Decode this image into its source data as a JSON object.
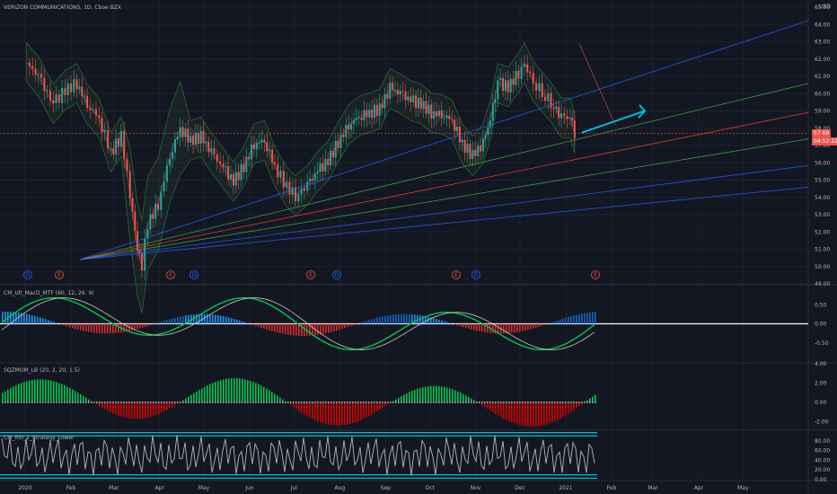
{
  "header": {
    "title": "VERIZON COMMUNICATIONS, 1D, Cboe BZX",
    "currency": "USD",
    "price_label": "57.69",
    "countdown_label": "04:52:22"
  },
  "panes": {
    "macd_label": "CM_Ult_MacD_MTF (60, 12, 26, 9)",
    "sqz_label": "SQZMOM_LB (20, 2, 20, 1.5)",
    "rsi_label": "CM_RSI_2_Strategy_Lower"
  },
  "colors": {
    "bg": "#131722",
    "up": "#26a69a",
    "down": "#ef5350",
    "grid": "#1e222d",
    "axis_text": "#b2b5be",
    "fib1": "#2962ff",
    "fib2": "#4caf50",
    "fib3": "#f44336",
    "macd_green": "#00c853",
    "macd_red": "#ff1744",
    "sqz_green": "#00c853",
    "sqz_red": "#d50000",
    "rsi_line": "#b2b5be",
    "rsi_band": "#00bcd4"
  },
  "chart_data": [
    {
      "type": "candlestick",
      "title": "VERIZON COMMUNICATIONS, 1D, Cboe BZX",
      "ylabel": "USD",
      "ylim": [
        49.0,
        65.0
      ],
      "y_ticks": [
        "65.00",
        "64.00",
        "63.00",
        "62.00",
        "61.00",
        "60.00",
        "59.00",
        "58.00",
        "57.00",
        "56.00",
        "55.00",
        "54.00",
        "53.00",
        "52.00",
        "51.00",
        "50.00",
        "49.00"
      ],
      "x_ticks": [
        "2020",
        "Feb",
        "Mar",
        "Apr",
        "May",
        "Jun",
        "Jul",
        "Aug",
        "Sep",
        "Oct",
        "Nov",
        "Dec",
        "2021",
        "Feb",
        "Mar",
        "Apr",
        "May"
      ],
      "last_price": 57.69,
      "close_path": [
        {
          "x": "2020-01-02",
          "y": 61.8
        },
        {
          "x": "2020-01-10",
          "y": 61.0
        },
        {
          "x": "2020-01-20",
          "y": 59.4
        },
        {
          "x": "2020-01-28",
          "y": 60.2
        },
        {
          "x": "2020-02-05",
          "y": 60.6
        },
        {
          "x": "2020-02-12",
          "y": 59.4
        },
        {
          "x": "2020-02-20",
          "y": 58.6
        },
        {
          "x": "2020-02-28",
          "y": 56.6
        },
        {
          "x": "2020-03-06",
          "y": 57.5
        },
        {
          "x": "2020-03-12",
          "y": 54.2
        },
        {
          "x": "2020-03-17",
          "y": 51.0
        },
        {
          "x": "2020-03-20",
          "y": 50.0
        },
        {
          "x": "2020-03-24",
          "y": 52.5
        },
        {
          "x": "2020-03-31",
          "y": 53.6
        },
        {
          "x": "2020-04-08",
          "y": 56.4
        },
        {
          "x": "2020-04-15",
          "y": 58.0
        },
        {
          "x": "2020-04-22",
          "y": 57.3
        },
        {
          "x": "2020-04-29",
          "y": 57.5
        },
        {
          "x": "2020-05-06",
          "y": 56.6
        },
        {
          "x": "2020-05-14",
          "y": 55.7
        },
        {
          "x": "2020-05-21",
          "y": 54.9
        },
        {
          "x": "2020-05-28",
          "y": 55.8
        },
        {
          "x": "2020-06-04",
          "y": 57.1
        },
        {
          "x": "2020-06-11",
          "y": 57.3
        },
        {
          "x": "2020-06-18",
          "y": 55.8
        },
        {
          "x": "2020-06-26",
          "y": 54.6
        },
        {
          "x": "2020-07-02",
          "y": 54.1
        },
        {
          "x": "2020-07-10",
          "y": 54.7
        },
        {
          "x": "2020-07-17",
          "y": 55.5
        },
        {
          "x": "2020-07-24",
          "y": 56.1
        },
        {
          "x": "2020-07-31",
          "y": 57.2
        },
        {
          "x": "2020-08-07",
          "y": 58.2
        },
        {
          "x": "2020-08-14",
          "y": 58.7
        },
        {
          "x": "2020-08-21",
          "y": 58.9
        },
        {
          "x": "2020-08-28",
          "y": 59.1
        },
        {
          "x": "2020-09-04",
          "y": 60.3
        },
        {
          "x": "2020-09-11",
          "y": 60.0
        },
        {
          "x": "2020-09-18",
          "y": 59.6
        },
        {
          "x": "2020-09-25",
          "y": 59.4
        },
        {
          "x": "2020-10-02",
          "y": 58.9
        },
        {
          "x": "2020-10-09",
          "y": 58.8
        },
        {
          "x": "2020-10-16",
          "y": 58.5
        },
        {
          "x": "2020-10-23",
          "y": 57.1
        },
        {
          "x": "2020-10-30",
          "y": 56.4
        },
        {
          "x": "2020-11-06",
          "y": 57.1
        },
        {
          "x": "2020-11-11",
          "y": 58.5
        },
        {
          "x": "2020-11-16",
          "y": 60.6
        },
        {
          "x": "2020-11-23",
          "y": 60.4
        },
        {
          "x": "2020-11-30",
          "y": 61.2
        },
        {
          "x": "2020-12-04",
          "y": 61.8
        },
        {
          "x": "2020-12-10",
          "y": 60.7
        },
        {
          "x": "2020-12-16",
          "y": 60.1
        },
        {
          "x": "2020-12-22",
          "y": 59.5
        },
        {
          "x": "2020-12-29",
          "y": 58.6
        },
        {
          "x": "2021-01-04",
          "y": 58.6
        },
        {
          "x": "2021-01-07",
          "y": 57.69
        }
      ]
    },
    {
      "type": "line",
      "title": "CM_Ult_MacD_MTF (60, 12, 26, 9)",
      "ylim": [
        -1.0,
        1.0
      ],
      "y_ticks": [
        "0.50",
        "0.00",
        "-0.50"
      ]
    },
    {
      "type": "bar",
      "title": "SQZMOM_LB (20, 2, 20, 1.5)",
      "ylim": [
        -2.8,
        4.0
      ],
      "y_ticks": [
        "4.00",
        "2.00",
        "0.00",
        "-2.00"
      ]
    },
    {
      "type": "line",
      "title": "CM_RSI_2_Strategy_Lower",
      "ylim": [
        0,
        100
      ],
      "y_ticks": [
        "80.00",
        "60.00",
        "40.00",
        "20.00",
        "0.00"
      ]
    }
  ],
  "events": [
    "D",
    "E",
    "E",
    "D",
    "E",
    "D",
    "E",
    "D",
    "E"
  ]
}
